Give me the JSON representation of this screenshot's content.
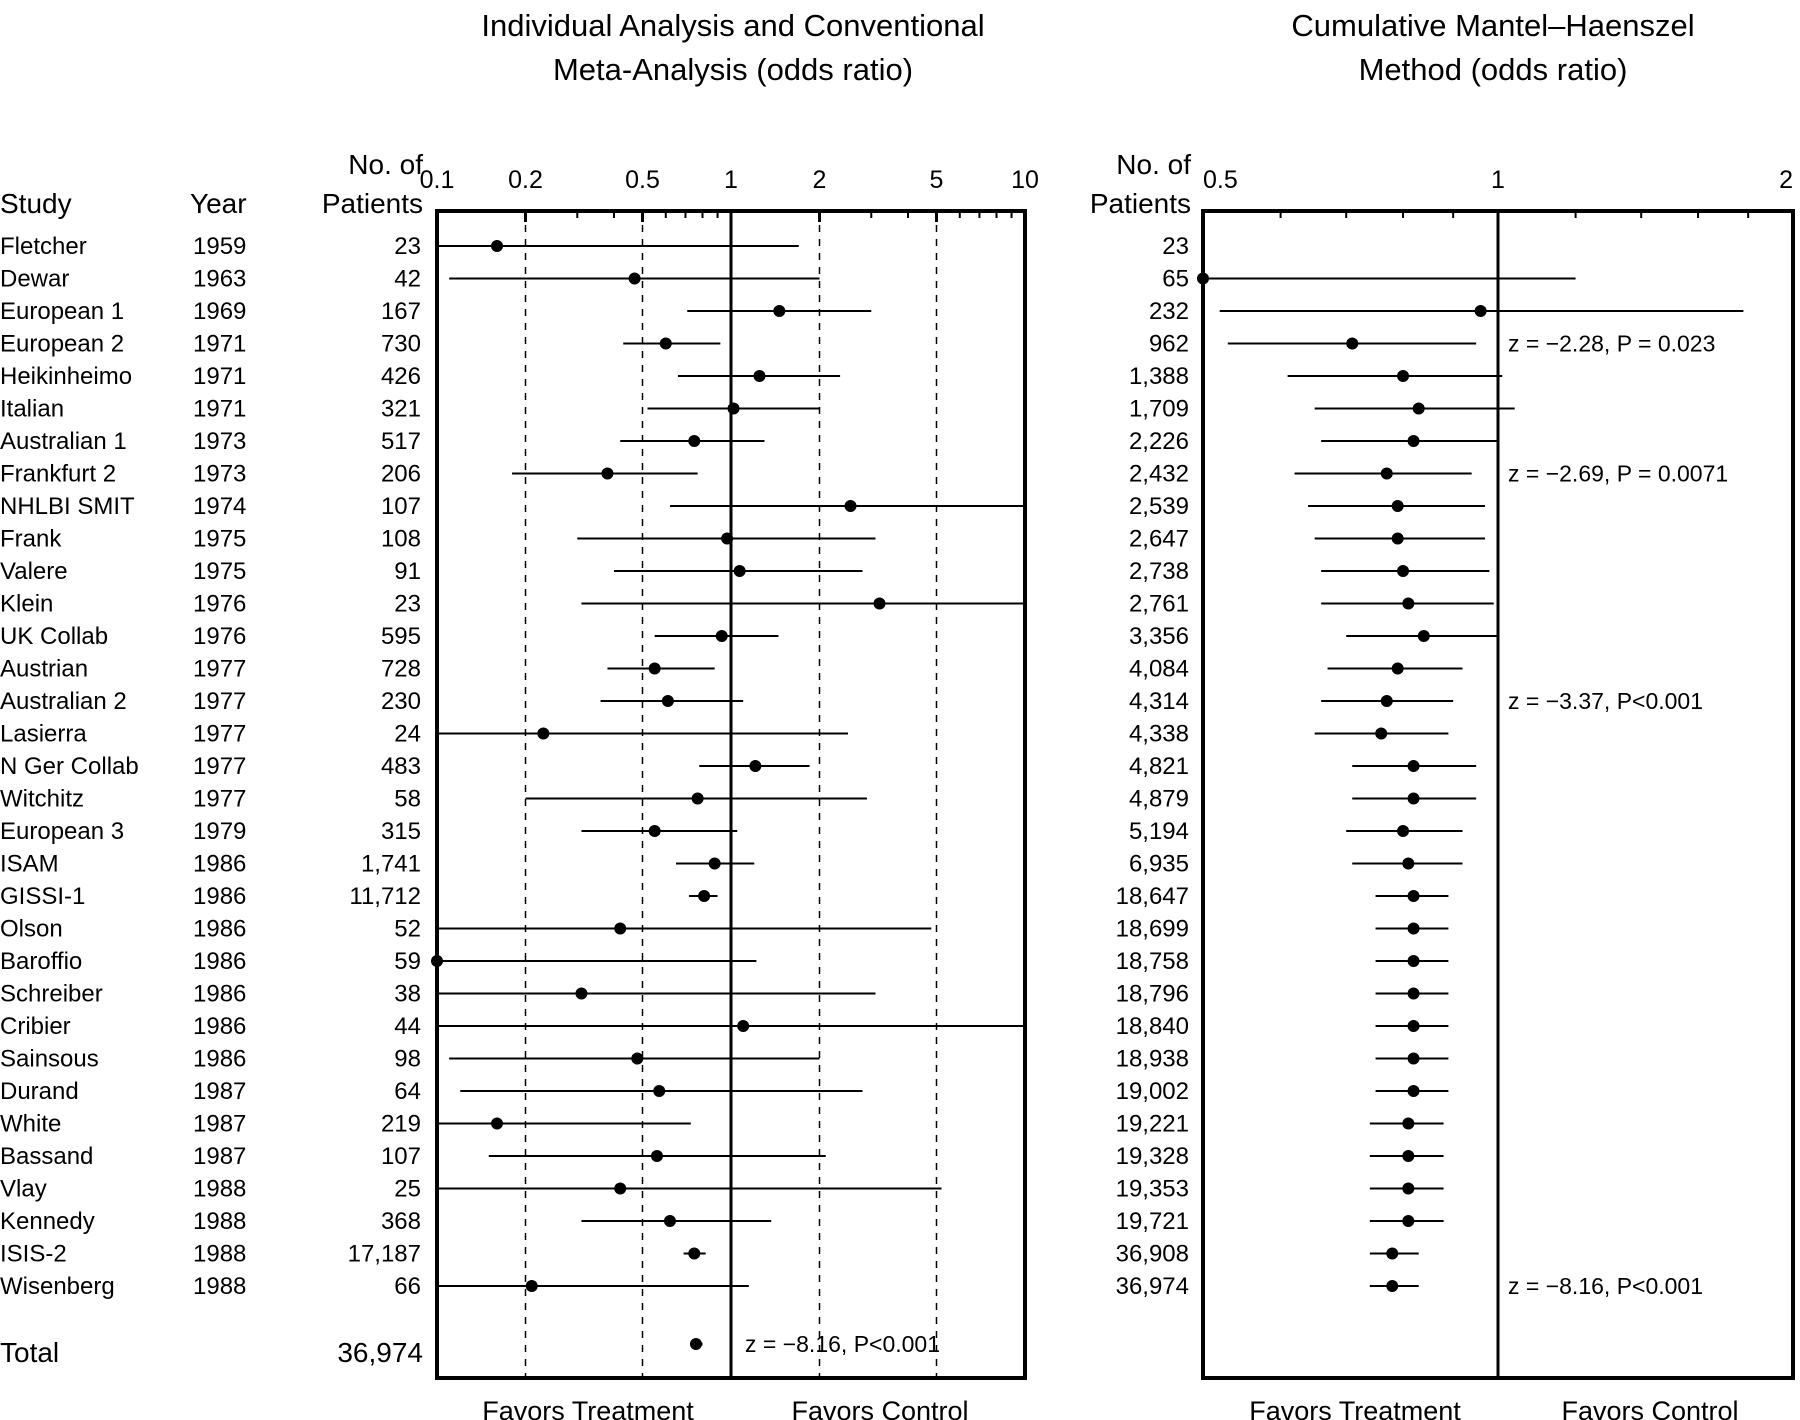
{
  "left_title": [
    "Individual Analysis and Conventional",
    "Meta-Analysis (odds ratio)"
  ],
  "right_title": [
    "Cumulative Mantel–Haenszel",
    "Method (odds ratio)"
  ],
  "headers": {
    "study": "Study",
    "year": "Year",
    "patients_line1": "No. of",
    "patients_line2": "Patients"
  },
  "left_axis": {
    "ticks": [
      {
        "value": 0.1,
        "label": "0.1"
      },
      {
        "value": 0.2,
        "label": "0.2"
      },
      {
        "value": 0.5,
        "label": "0.5"
      },
      {
        "value": 1,
        "label": "1"
      },
      {
        "value": 2,
        "label": "2"
      },
      {
        "value": 5,
        "label": "5"
      },
      {
        "value": 10,
        "label": "10"
      }
    ]
  },
  "right_axis": {
    "ticks": [
      {
        "value": 0.5,
        "label": "0.5"
      },
      {
        "value": 1,
        "label": "1"
      },
      {
        "value": 2,
        "label": "2"
      }
    ]
  },
  "footer": {
    "favors_treatment": "Favors Treatment",
    "favors_control": "Favors Control"
  },
  "total": {
    "label": "Total",
    "patients": "36,974",
    "note": "z = −8.16, P<0.001"
  },
  "cumulative_notes": [
    {
      "row": 3,
      "text": "z = −2.28, P = 0.023"
    },
    {
      "row": 7,
      "text": "z = −2.69, P = 0.0071"
    },
    {
      "row": 14,
      "text": "z = −3.37, P<0.001"
    },
    {
      "row": 32,
      "text": "z = −8.16, P<0.001"
    }
  ],
  "chart_data": {
    "type": "forest",
    "x_scale": "log",
    "individual_xlim": [
      0.1,
      10
    ],
    "cumulative_xlim": [
      0.5,
      2
    ],
    "studies": [
      {
        "study": "Fletcher",
        "year": "1959",
        "patients": "23",
        "or": 0.16,
        "ci": [
          0.1,
          1.7
        ],
        "cum_patients": "23",
        "cum_or": null,
        "cum_ci": null
      },
      {
        "study": "Dewar",
        "year": "1963",
        "patients": "42",
        "or": 0.47,
        "ci": [
          0.11,
          2.0
        ],
        "cum_patients": "65",
        "cum_or": 0.5,
        "cum_ci": [
          0.5,
          1.2
        ]
      },
      {
        "study": "European 1",
        "year": "1969",
        "patients": "167",
        "or": 1.46,
        "ci": [
          0.71,
          3.0
        ],
        "cum_patients": "232",
        "cum_or": 0.96,
        "cum_ci": [
          0.52,
          1.78
        ]
      },
      {
        "study": "European 2",
        "year": "1971",
        "patients": "730",
        "or": 0.6,
        "ci": [
          0.43,
          0.92
        ],
        "cum_patients": "962",
        "cum_or": 0.71,
        "cum_ci": [
          0.53,
          0.95
        ]
      },
      {
        "study": "Heikinheimo",
        "year": "1971",
        "patients": "426",
        "or": 1.25,
        "ci": [
          0.66,
          2.35
        ],
        "cum_patients": "1,388",
        "cum_or": 0.8,
        "cum_ci": [
          0.61,
          1.01
        ]
      },
      {
        "study": "Italian",
        "year": "1971",
        "patients": "321",
        "or": 1.02,
        "ci": [
          0.52,
          2.0
        ],
        "cum_patients": "1,709",
        "cum_or": 0.83,
        "cum_ci": [
          0.65,
          1.04
        ]
      },
      {
        "study": "Australian 1",
        "year": "1973",
        "patients": "517",
        "or": 0.75,
        "ci": [
          0.42,
          1.3
        ],
        "cum_patients": "2,226",
        "cum_or": 0.82,
        "cum_ci": [
          0.66,
          1.0
        ]
      },
      {
        "study": "Frankfurt 2",
        "year": "1973",
        "patients": "206",
        "or": 0.38,
        "ci": [
          0.18,
          0.77
        ],
        "cum_patients": "2,432",
        "cum_or": 0.77,
        "cum_ci": [
          0.62,
          0.94
        ]
      },
      {
        "study": "NHLBI SMIT",
        "year": "1974",
        "patients": "107",
        "or": 2.55,
        "ci": [
          0.62,
          10
        ],
        "cum_patients": "2,539",
        "cum_or": 0.79,
        "cum_ci": [
          0.64,
          0.97
        ]
      },
      {
        "study": "Frank",
        "year": "1975",
        "patients": "108",
        "or": 0.97,
        "ci": [
          0.3,
          3.1
        ],
        "cum_patients": "2,647",
        "cum_or": 0.79,
        "cum_ci": [
          0.65,
          0.97
        ]
      },
      {
        "study": "Valere",
        "year": "1975",
        "patients": "91",
        "or": 1.07,
        "ci": [
          0.4,
          2.8
        ],
        "cum_patients": "2,738",
        "cum_or": 0.8,
        "cum_ci": [
          0.66,
          0.98
        ]
      },
      {
        "study": "Klein",
        "year": "1976",
        "patients": "23",
        "or": 3.2,
        "ci": [
          0.31,
          10
        ],
        "cum_patients": "2,761",
        "cum_or": 0.81,
        "cum_ci": [
          0.66,
          0.99
        ]
      },
      {
        "study": "UK Collab",
        "year": "1976",
        "patients": "595",
        "or": 0.93,
        "ci": [
          0.55,
          1.45
        ],
        "cum_patients": "3,356",
        "cum_or": 0.84,
        "cum_ci": [
          0.7,
          1.0
        ]
      },
      {
        "study": "Austrian",
        "year": "1977",
        "patients": "728",
        "or": 0.55,
        "ci": [
          0.38,
          0.88
        ],
        "cum_patients": "4,084",
        "cum_or": 0.79,
        "cum_ci": [
          0.67,
          0.92
        ]
      },
      {
        "study": "Australian 2",
        "year": "1977",
        "patients": "230",
        "or": 0.61,
        "ci": [
          0.36,
          1.1
        ],
        "cum_patients": "4,314",
        "cum_or": 0.77,
        "cum_ci": [
          0.66,
          0.9
        ]
      },
      {
        "study": "Lasierra",
        "year": "1977",
        "patients": "24",
        "or": 0.23,
        "ci": [
          0.1,
          2.5
        ],
        "cum_patients": "4,338",
        "cum_or": 0.76,
        "cum_ci": [
          0.65,
          0.89
        ]
      },
      {
        "study": "N Ger Collab",
        "year": "1977",
        "patients": "483",
        "or": 1.21,
        "ci": [
          0.78,
          1.85
        ],
        "cum_patients": "4,821",
        "cum_or": 0.82,
        "cum_ci": [
          0.71,
          0.95
        ]
      },
      {
        "study": "Witchitz",
        "year": "1977",
        "patients": "58",
        "or": 0.77,
        "ci": [
          0.2,
          2.9
        ],
        "cum_patients": "4,879",
        "cum_or": 0.82,
        "cum_ci": [
          0.71,
          0.95
        ]
      },
      {
        "study": "European 3",
        "year": "1979",
        "patients": "315",
        "or": 0.55,
        "ci": [
          0.31,
          1.05
        ],
        "cum_patients": "5,194",
        "cum_or": 0.8,
        "cum_ci": [
          0.7,
          0.92
        ]
      },
      {
        "study": "ISAM",
        "year": "1986",
        "patients": "1,741",
        "or": 0.88,
        "ci": [
          0.65,
          1.2
        ],
        "cum_patients": "6,935",
        "cum_or": 0.81,
        "cum_ci": [
          0.71,
          0.92
        ]
      },
      {
        "study": "GISSI-1",
        "year": "1986",
        "patients": "11,712",
        "or": 0.81,
        "ci": [
          0.72,
          0.9
        ],
        "cum_patients": "18,647",
        "cum_or": 0.82,
        "cum_ci": [
          0.75,
          0.89
        ]
      },
      {
        "study": "Olson",
        "year": "1986",
        "patients": "52",
        "or": 0.42,
        "ci": [
          0.1,
          4.8
        ],
        "cum_patients": "18,699",
        "cum_or": 0.82,
        "cum_ci": [
          0.75,
          0.89
        ]
      },
      {
        "study": "Baroffio",
        "year": "1986",
        "patients": "59",
        "or": 0.1,
        "ci": [
          0.1,
          1.22
        ],
        "cum_patients": "18,758",
        "cum_or": 0.82,
        "cum_ci": [
          0.75,
          0.89
        ]
      },
      {
        "study": "Schreiber",
        "year": "1986",
        "patients": "38",
        "or": 0.31,
        "ci": [
          0.1,
          3.1
        ],
        "cum_patients": "18,796",
        "cum_or": 0.82,
        "cum_ci": [
          0.75,
          0.89
        ]
      },
      {
        "study": "Cribier",
        "year": "1986",
        "patients": "44",
        "or": 1.1,
        "ci": [
          0.1,
          10
        ],
        "cum_patients": "18,840",
        "cum_or": 0.82,
        "cum_ci": [
          0.75,
          0.89
        ]
      },
      {
        "study": "Sainsous",
        "year": "1986",
        "patients": "98",
        "or": 0.48,
        "ci": [
          0.11,
          2.0
        ],
        "cum_patients": "18,938",
        "cum_or": 0.82,
        "cum_ci": [
          0.75,
          0.89
        ]
      },
      {
        "study": "Durand",
        "year": "1987",
        "patients": "64",
        "or": 0.57,
        "ci": [
          0.12,
          2.8
        ],
        "cum_patients": "19,002",
        "cum_or": 0.82,
        "cum_ci": [
          0.75,
          0.89
        ]
      },
      {
        "study": "White",
        "year": "1987",
        "patients": "219",
        "or": 0.16,
        "ci": [
          0.1,
          0.73
        ],
        "cum_patients": "19,221",
        "cum_or": 0.81,
        "cum_ci": [
          0.74,
          0.88
        ]
      },
      {
        "study": "Bassand",
        "year": "1987",
        "patients": "107",
        "or": 0.56,
        "ci": [
          0.15,
          2.1
        ],
        "cum_patients": "19,328",
        "cum_or": 0.81,
        "cum_ci": [
          0.74,
          0.88
        ]
      },
      {
        "study": "Vlay",
        "year": "1988",
        "patients": "25",
        "or": 0.42,
        "ci": [
          0.1,
          5.2
        ],
        "cum_patients": "19,353",
        "cum_or": 0.81,
        "cum_ci": [
          0.74,
          0.88
        ]
      },
      {
        "study": "Kennedy",
        "year": "1988",
        "patients": "368",
        "or": 0.62,
        "ci": [
          0.31,
          1.37
        ],
        "cum_patients": "19,721",
        "cum_or": 0.81,
        "cum_ci": [
          0.74,
          0.88
        ]
      },
      {
        "study": "ISIS-2",
        "year": "1988",
        "patients": "17,187",
        "or": 0.75,
        "ci": [
          0.69,
          0.82
        ],
        "cum_patients": "36,908",
        "cum_or": 0.78,
        "cum_ci": [
          0.74,
          0.83
        ]
      },
      {
        "study": "Wisenberg",
        "year": "1988",
        "patients": "66",
        "or": 0.21,
        "ci": [
          0.1,
          1.15
        ],
        "cum_patients": "36,974",
        "cum_or": 0.78,
        "cum_ci": [
          0.74,
          0.83
        ]
      }
    ],
    "total": {
      "or": 0.76,
      "ci": [
        0.73,
        0.8
      ]
    }
  }
}
